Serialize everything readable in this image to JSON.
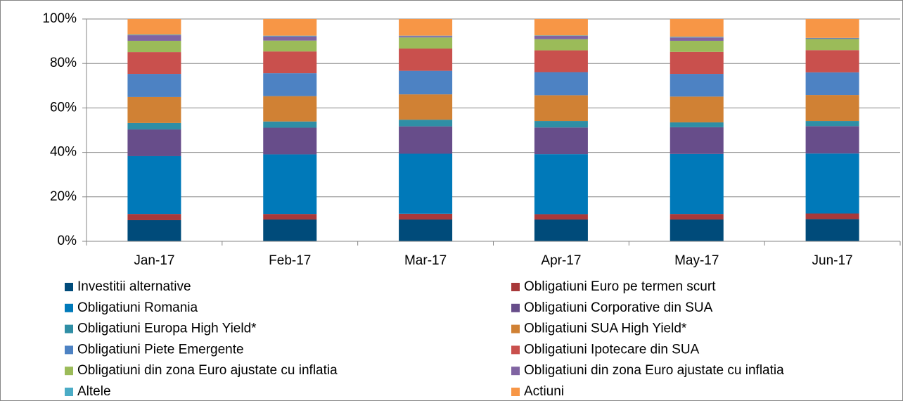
{
  "chart_data": {
    "type": "stacked_bar",
    "categories": [
      "Jan-17",
      "Feb-17",
      "Mar-17",
      "Apr-17",
      "May-17",
      "Jun-17"
    ],
    "ylim": [
      0,
      100
    ],
    "yticks": [
      {
        "value": 0,
        "label": "0%"
      },
      {
        "value": 20,
        "label": "20%"
      },
      {
        "value": 40,
        "label": "40%"
      },
      {
        "value": 60,
        "label": "60%"
      },
      {
        "value": 80,
        "label": "80%"
      },
      {
        "value": 100,
        "label": "100%"
      }
    ],
    "grid": true,
    "legend": "bottom",
    "series": [
      {
        "name": "Investitii alternative",
        "color": "#004b7a",
        "values": [
          9.5,
          9.8,
          9.8,
          9.8,
          9.8,
          10
        ]
      },
      {
        "name": "Obligatiuni Euro pe termen scurt",
        "color": "#a8393a",
        "values": [
          2.8,
          2.5,
          2.6,
          2.4,
          2.5,
          2.5
        ]
      },
      {
        "name": "Obligatiuni Romania",
        "color": "#0079b9",
        "values": [
          26,
          26.8,
          27,
          27,
          27,
          27
        ]
      },
      {
        "name": "Obligatiuni Corporative din SUA",
        "color": "#674d8a",
        "values": [
          12,
          12,
          12.3,
          12,
          12,
          12.3
        ]
      },
      {
        "name": "Obligatiuni Europa High Yield*",
        "color": "#2f8ea5",
        "values": [
          2.9,
          2.8,
          3,
          2.9,
          2.2,
          2.3
        ]
      },
      {
        "name": "Obligatiuni SUA High Yield*",
        "color": "#d08134",
        "values": [
          11.7,
          11.4,
          11.4,
          11.6,
          11.6,
          11.7
        ]
      },
      {
        "name": "Obligatiuni Piete Emergente",
        "color": "#4d82c3",
        "values": [
          10.4,
          10.3,
          10.6,
          10.4,
          10.2,
          10.2
        ]
      },
      {
        "name": "Obligatiuni Ipotecare din SUA",
        "color": "#c9504d",
        "values": [
          9.8,
          9.8,
          10,
          9.8,
          9.9,
          10
        ]
      },
      {
        "name": "Obligatiuni din zona Euro ajustate cu inflatia",
        "color": "#9bbb59",
        "values": [
          5.1,
          4.9,
          5,
          5,
          5,
          5
        ]
      },
      {
        "name": "Obligatiuni din zona Euro ajustate cu inflatia",
        "color": "#8064a2",
        "values": [
          2.5,
          1.9,
          0.6,
          1.5,
          1.5,
          0.3
        ]
      },
      {
        "name": "Altele",
        "color": "#4bacc6",
        "values": [
          0.3,
          0.3,
          0.2,
          0.2,
          0.3,
          0.2
        ]
      },
      {
        "name": "Actiuni",
        "color": "#f79646",
        "values": [
          7.0,
          7.5,
          7.5,
          7.4,
          8,
          8.5
        ]
      }
    ]
  }
}
